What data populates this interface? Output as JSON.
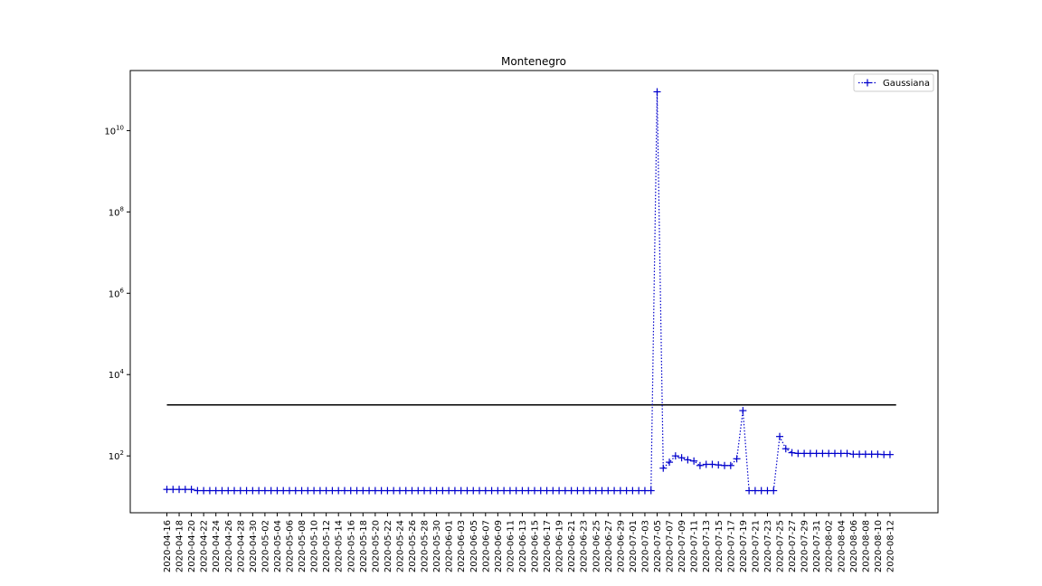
{
  "chart_data": {
    "type": "line",
    "title": "Montenegro",
    "xlabel": "",
    "ylabel": "",
    "yscale": "log",
    "ylim": [
      4,
      300000000000
    ],
    "y_ticks": [
      {
        "value": 100,
        "base": "10",
        "exp": "2"
      },
      {
        "value": 10000,
        "base": "10",
        "exp": "4"
      },
      {
        "value": 1000000,
        "base": "10",
        "exp": "6"
      },
      {
        "value": 100000000,
        "base": "10",
        "exp": "8"
      },
      {
        "value": 10000000000,
        "base": "10",
        "exp": "10"
      }
    ],
    "x_tick_labels": [
      "2020-04-16",
      "2020-04-18",
      "2020-04-20",
      "2020-04-22",
      "2020-04-24",
      "2020-04-26",
      "2020-04-28",
      "2020-04-30",
      "2020-05-02",
      "2020-05-04",
      "2020-05-06",
      "2020-05-08",
      "2020-05-10",
      "2020-05-12",
      "2020-05-14",
      "2020-05-16",
      "2020-05-18",
      "2020-05-20",
      "2020-05-22",
      "2020-05-24",
      "2020-05-26",
      "2020-05-28",
      "2020-05-30",
      "2020-06-01",
      "2020-06-03",
      "2020-06-05",
      "2020-06-07",
      "2020-06-09",
      "2020-06-11",
      "2020-06-13",
      "2020-06-15",
      "2020-06-17",
      "2020-06-19",
      "2020-06-21",
      "2020-06-23",
      "2020-06-25",
      "2020-06-27",
      "2020-06-29",
      "2020-07-01",
      "2020-07-03",
      "2020-07-05",
      "2020-07-07",
      "2020-07-09",
      "2020-07-11",
      "2020-07-13",
      "2020-07-15",
      "2020-07-17",
      "2020-07-19",
      "2020-07-21",
      "2020-07-23",
      "2020-07-25",
      "2020-07-27",
      "2020-07-29",
      "2020-07-31",
      "2020-08-02",
      "2020-08-04",
      "2020-08-06",
      "2020-08-08",
      "2020-08-10",
      "2020-08-12"
    ],
    "grid": false,
    "legend": {
      "placement": "top-right",
      "entries": [
        "Gaussiana"
      ]
    },
    "series": [
      {
        "name": "Gaussiana",
        "color": "#0000cc",
        "line_style": "dotted",
        "marker": "+",
        "start_date": "2020-04-16",
        "values": [
          15,
          15,
          15,
          15,
          15,
          14,
          14,
          14,
          14,
          14,
          14,
          14,
          14,
          14,
          14,
          14,
          14,
          14,
          14,
          14,
          14,
          14,
          14,
          14,
          14,
          14,
          14,
          14,
          14,
          14,
          14,
          14,
          14,
          14,
          14,
          14,
          14,
          14,
          14,
          14,
          14,
          14,
          14,
          14,
          14,
          14,
          14,
          14,
          14,
          14,
          14,
          14,
          14,
          14,
          14,
          14,
          14,
          14,
          14,
          14,
          14,
          14,
          14,
          14,
          14,
          14,
          14,
          14,
          14,
          14,
          14,
          14,
          14,
          14,
          14,
          14,
          14,
          14,
          14,
          14,
          90000000000,
          50,
          70,
          100,
          90,
          80,
          75,
          58,
          62,
          62,
          60,
          58,
          58,
          85,
          1300,
          14,
          14,
          14,
          14,
          14,
          300,
          150,
          120,
          115,
          115,
          115,
          115,
          115,
          115,
          115,
          115,
          115,
          110,
          110,
          110,
          110,
          110,
          108,
          108
        ]
      },
      {
        "name": "",
        "color": "#000000",
        "line_style": "solid",
        "marker": "",
        "start_date": "2020-04-16",
        "end_date": "2020-08-13",
        "constant_value": 1800
      }
    ]
  }
}
